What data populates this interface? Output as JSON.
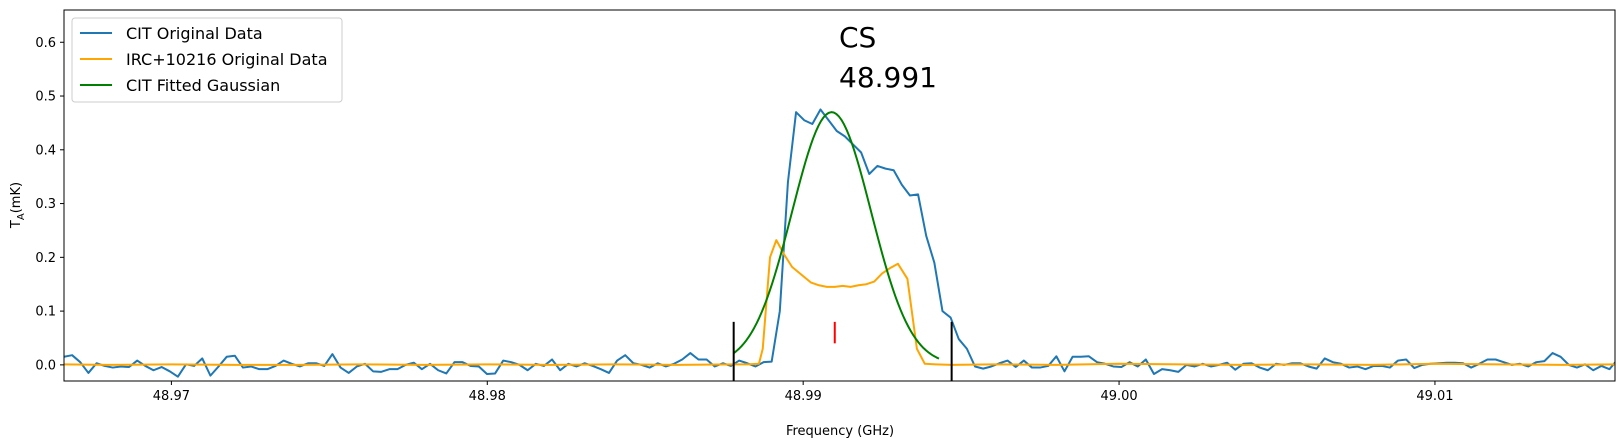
{
  "chart_data": {
    "type": "line",
    "title": "",
    "xlabel": "Frequency (GHz)",
    "ylabel_prefix": "T",
    "ylabel_sub": "A",
    "ylabel_suffix": "(mK)",
    "xlim": [
      48.9666,
      49.0157
    ],
    "ylim": [
      -0.03,
      0.66
    ],
    "x_ticks": [
      48.97,
      48.98,
      48.99,
      49.0,
      49.01
    ],
    "x_tick_labels": [
      "48.97",
      "48.98",
      "48.99",
      "49.00",
      "49.01"
    ],
    "y_ticks": [
      0.0,
      0.1,
      0.2,
      0.3,
      0.4,
      0.5,
      0.6
    ],
    "y_tick_labels": [
      "0.0",
      "0.1",
      "0.2",
      "0.3",
      "0.4",
      "0.5",
      "0.6"
    ],
    "grid": false,
    "legend_position": "top-left",
    "annotation": {
      "line1": "CS",
      "line2": "48.991",
      "x": 48.991
    },
    "line_center": {
      "x": 48.991,
      "y_range": [
        0.04,
        0.08
      ],
      "color": "#ff0000"
    },
    "window_markers": {
      "x": [
        48.9878,
        48.9947
      ],
      "y_range": [
        -0.03,
        0.08
      ],
      "color": "#000000"
    },
    "series": [
      {
        "name": "CIT Original Data",
        "color": "#1f77b4",
        "x_start": 48.9666,
        "x_step": 0.0002575,
        "values": [
          0.015,
          0.018,
          0.005,
          -0.015,
          0.003,
          -0.002,
          -0.005,
          -0.003,
          -0.004,
          0.008,
          -0.002,
          -0.01,
          -0.004,
          -0.012,
          -0.022,
          0.001,
          -0.002,
          0.012,
          -0.02,
          -0.003,
          0.015,
          0.017,
          -0.005,
          -0.003,
          -0.008,
          -0.008,
          -0.002,
          0.008,
          0.002,
          -0.003,
          0.003,
          0.003,
          -0.002,
          0.02,
          -0.005,
          -0.015,
          -0.003,
          0.002,
          -0.012,
          -0.013,
          -0.008,
          -0.008,
          0.0,
          0.004,
          -0.008,
          0.002,
          -0.01,
          -0.016,
          0.005,
          0.005,
          -0.002,
          -0.003,
          -0.017,
          -0.016,
          0.008,
          0.005,
          0.0,
          -0.01,
          0.002,
          -0.002,
          0.01,
          -0.01,
          0.002,
          -0.003,
          0.003,
          -0.002,
          -0.008,
          -0.015,
          0.008,
          0.018,
          0.003,
          0.0,
          -0.005,
          0.003,
          -0.003,
          0.002,
          0.01,
          0.022,
          0.01,
          0.01,
          -0.003,
          0.003,
          -0.002,
          0.008,
          0.003,
          -0.003,
          0.005,
          0.006,
          0.1,
          0.34,
          0.47,
          0.455,
          0.448,
          0.475,
          0.455,
          0.435,
          0.425,
          0.41,
          0.395,
          0.355,
          0.37,
          0.365,
          0.362,
          0.335,
          0.315,
          0.317,
          0.24,
          0.19,
          0.1,
          0.088,
          0.048,
          0.03,
          -0.003,
          -0.007,
          -0.003,
          0.003,
          0.008,
          -0.004,
          0.008,
          -0.005,
          -0.005,
          -0.002,
          0.016,
          -0.012,
          0.015,
          0.015,
          0.016,
          0.005,
          0.002,
          -0.003,
          -0.004,
          0.005,
          -0.003,
          0.01,
          -0.017,
          -0.008,
          -0.01,
          -0.013,
          0.0,
          -0.003,
          0.002,
          -0.003,
          0.0,
          0.004,
          -0.009,
          0.002,
          0.003,
          -0.005,
          -0.01,
          0.002,
          0.0,
          0.003,
          0.003,
          -0.003,
          -0.007,
          0.012,
          0.005,
          0.002,
          -0.005,
          -0.003,
          -0.008,
          -0.002,
          -0.002,
          -0.005,
          0.008,
          0.01,
          -0.006,
          0.0,
          0.002,
          0.003,
          0.004,
          0.004,
          0.003,
          -0.005,
          0.002,
          0.01,
          0.01,
          0.005,
          0.0,
          0.002,
          -0.003,
          0.005,
          0.007,
          0.022,
          0.015,
          0.0,
          -0.005,
          0.001,
          -0.01,
          -0.002,
          -0.008,
          0.01,
          0.005,
          0.003
        ]
      },
      {
        "name": "IRC+10216 Original Data",
        "color": "#ffa500",
        "points": [
          [
            48.9666,
            0.001
          ],
          [
            48.968,
            0.0
          ],
          [
            48.97,
            0.001
          ],
          [
            48.972,
            0.0
          ],
          [
            48.974,
            0.0
          ],
          [
            48.976,
            0.001
          ],
          [
            48.978,
            0.0
          ],
          [
            48.98,
            0.001
          ],
          [
            48.982,
            0.0
          ],
          [
            48.984,
            0.001
          ],
          [
            48.986,
            0.0
          ],
          [
            48.9878,
            0.001
          ],
          [
            48.98825,
            0.001
          ],
          [
            48.9886,
            0.002
          ],
          [
            48.98872,
            0.03
          ],
          [
            48.98895,
            0.2
          ],
          [
            48.98915,
            0.232
          ],
          [
            48.9894,
            0.205
          ],
          [
            48.98965,
            0.182
          ],
          [
            48.99,
            0.165
          ],
          [
            48.99025,
            0.153
          ],
          [
            48.9905,
            0.148
          ],
          [
            48.99075,
            0.145
          ],
          [
            48.991,
            0.145
          ],
          [
            48.99125,
            0.147
          ],
          [
            48.9915,
            0.145
          ],
          [
            48.99175,
            0.148
          ],
          [
            48.992,
            0.15
          ],
          [
            48.99225,
            0.155
          ],
          [
            48.9925,
            0.17
          ],
          [
            48.99275,
            0.18
          ],
          [
            48.993,
            0.188
          ],
          [
            48.9933,
            0.16
          ],
          [
            48.9936,
            0.03
          ],
          [
            48.99385,
            0.002
          ],
          [
            48.9942,
            0.001
          ],
          [
            48.9947,
            0.0
          ],
          [
            48.996,
            0.001
          ],
          [
            48.998,
            0.0
          ],
          [
            49.0,
            0.002
          ],
          [
            49.002,
            0.001
          ],
          [
            49.004,
            0.0
          ],
          [
            49.006,
            0.001
          ],
          [
            49.008,
            0.0
          ],
          [
            49.01,
            0.002
          ],
          [
            49.012,
            0.001
          ],
          [
            49.014,
            0.0
          ],
          [
            49.0157,
            0.001
          ]
        ]
      },
      {
        "name": "CIT Fitted Gaussian",
        "color": "#008000",
        "gaussian": {
          "amplitude": 0.47,
          "center": 48.9909,
          "sigma": 0.00125,
          "x_range": [
            48.9878,
            48.9943
          ]
        }
      }
    ]
  }
}
